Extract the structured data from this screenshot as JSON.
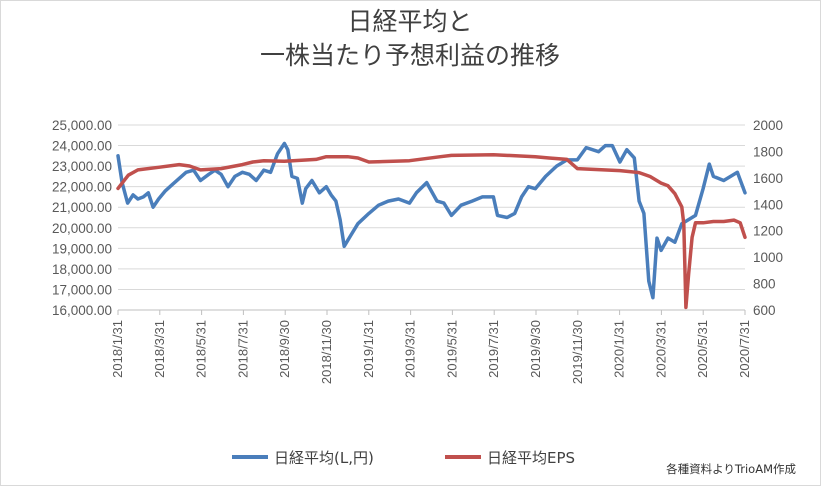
{
  "chart_data": {
    "type": "line",
    "title_lines": [
      "日経平均と",
      "一株当たり予想利益の推移"
    ],
    "source_note": "各種資料よりTrioAM作成",
    "y_left": {
      "ylim": [
        16000,
        25000
      ],
      "ticks": [
        "25,000.00",
        "24,000.00",
        "23,000.00",
        "22,000.00",
        "21,000.00",
        "20,000.00",
        "19,000.00",
        "18,000.00",
        "17,000.00",
        "16,000.00"
      ],
      "tick_values": [
        25000,
        24000,
        23000,
        22000,
        21000,
        20000,
        19000,
        18000,
        17000,
        16000
      ]
    },
    "y_right": {
      "ylim": [
        600,
        2000
      ],
      "ticks": [
        "2000",
        "1800",
        "1600",
        "1400",
        "1200",
        "1000",
        "800",
        "600"
      ],
      "tick_values": [
        2000,
        1800,
        1600,
        1400,
        1200,
        1000,
        800,
        600
      ]
    },
    "x_tick_labels": [
      "2018/1/31",
      "2018/3/31",
      "2018/5/31",
      "2018/7/31",
      "2018/9/30",
      "2018/11/30",
      "2019/1/31",
      "2019/3/31",
      "2019/5/31",
      "2019/7/31",
      "2019/9/30",
      "2019/11/30",
      "2020/1/31",
      "2020/3/31",
      "2020/5/31",
      "2020/7/31"
    ],
    "grid": "horizontal",
    "legend_position": "bottom",
    "series": [
      {
        "name": "日経平均(L,円)",
        "axis": "left",
        "color": "#4a7ebb",
        "x": [
          "2018-01-31",
          "2018-02-06",
          "2018-02-14",
          "2018-02-22",
          "2018-03-01",
          "2018-03-09",
          "2018-03-16",
          "2018-03-23",
          "2018-03-31",
          "2018-04-10",
          "2018-04-20",
          "2018-04-30",
          "2018-05-10",
          "2018-05-21",
          "2018-05-31",
          "2018-06-12",
          "2018-06-21",
          "2018-06-30",
          "2018-07-10",
          "2018-07-20",
          "2018-07-31",
          "2018-08-10",
          "2018-08-20",
          "2018-08-31",
          "2018-09-10",
          "2018-09-20",
          "2018-09-30",
          "2018-10-05",
          "2018-10-11",
          "2018-10-19",
          "2018-10-26",
          "2018-10-31",
          "2018-11-09",
          "2018-11-20",
          "2018-11-30",
          "2018-12-07",
          "2018-12-14",
          "2018-12-20",
          "2018-12-26",
          "2019-01-04",
          "2019-01-15",
          "2019-01-31",
          "2019-02-14",
          "2019-02-28",
          "2019-03-15",
          "2019-03-31",
          "2019-04-10",
          "2019-04-25",
          "2019-05-10",
          "2019-05-20",
          "2019-05-31",
          "2019-06-14",
          "2019-06-30",
          "2019-07-15",
          "2019-07-31",
          "2019-08-06",
          "2019-08-20",
          "2019-08-31",
          "2019-09-10",
          "2019-09-20",
          "2019-09-30",
          "2019-10-15",
          "2019-10-31",
          "2019-11-15",
          "2019-11-30",
          "2019-12-13",
          "2019-12-31",
          "2020-01-10",
          "2020-01-20",
          "2020-01-31",
          "2020-02-10",
          "2020-02-21",
          "2020-02-28",
          "2020-03-06",
          "2020-03-13",
          "2020-03-19",
          "2020-03-25",
          "2020-03-31",
          "2020-04-10",
          "2020-04-20",
          "2020-04-30",
          "2020-05-10",
          "2020-05-20",
          "2020-05-31",
          "2020-06-09",
          "2020-06-15",
          "2020-06-30",
          "2020-07-10",
          "2020-07-20",
          "2020-07-31"
        ],
        "values": [
          23500,
          22200,
          21200,
          21600,
          21400,
          21500,
          21700,
          21000,
          21400,
          21800,
          22100,
          22400,
          22700,
          22800,
          22300,
          22600,
          22800,
          22600,
          22000,
          22500,
          22700,
          22600,
          22300,
          22800,
          22700,
          23600,
          24100,
          23800,
          22500,
          22400,
          21200,
          21900,
          22300,
          21700,
          22000,
          21600,
          21300,
          20400,
          19100,
          19600,
          20200,
          20700,
          21100,
          21300,
          21400,
          21200,
          21700,
          22200,
          21300,
          21200,
          20600,
          21100,
          21300,
          21500,
          21500,
          20600,
          20500,
          20700,
          21500,
          22000,
          21900,
          22500,
          23000,
          23300,
          23300,
          23900,
          23700,
          24000,
          24000,
          23200,
          23800,
          23400,
          21300,
          20700,
          17400,
          16600,
          19500,
          18900,
          19500,
          19300,
          20200,
          20400,
          20600,
          21900,
          23100,
          22500,
          22300,
          22500,
          22700,
          21700
        ]
      },
      {
        "name": "日経平均EPS",
        "axis": "right",
        "color": "#c0504d",
        "x": [
          "2018-01-31",
          "2018-02-15",
          "2018-03-01",
          "2018-03-31",
          "2018-04-30",
          "2018-05-15",
          "2018-05-31",
          "2018-06-30",
          "2018-07-31",
          "2018-08-15",
          "2018-08-31",
          "2018-09-30",
          "2018-10-31",
          "2018-11-15",
          "2018-11-30",
          "2018-12-31",
          "2019-01-15",
          "2019-01-31",
          "2019-03-31",
          "2019-05-15",
          "2019-05-31",
          "2019-07-31",
          "2019-09-30",
          "2019-10-20",
          "2019-11-15",
          "2019-11-30",
          "2020-01-31",
          "2020-02-28",
          "2020-03-15",
          "2020-03-31",
          "2020-04-10",
          "2020-04-20",
          "2020-04-30",
          "2020-05-03",
          "2020-05-06",
          "2020-05-10",
          "2020-05-15",
          "2020-05-20",
          "2020-05-31",
          "2020-06-15",
          "2020-06-30",
          "2020-07-15",
          "2020-07-24",
          "2020-07-31"
        ],
        "values": [
          1520,
          1620,
          1660,
          1680,
          1700,
          1690,
          1660,
          1670,
          1700,
          1720,
          1730,
          1725,
          1735,
          1740,
          1760,
          1760,
          1750,
          1720,
          1730,
          1760,
          1770,
          1775,
          1760,
          1750,
          1740,
          1670,
          1655,
          1640,
          1610,
          1560,
          1540,
          1480,
          1380,
          1250,
          620,
          870,
          1150,
          1260,
          1260,
          1270,
          1270,
          1280,
          1260,
          1150
        ]
      }
    ]
  }
}
